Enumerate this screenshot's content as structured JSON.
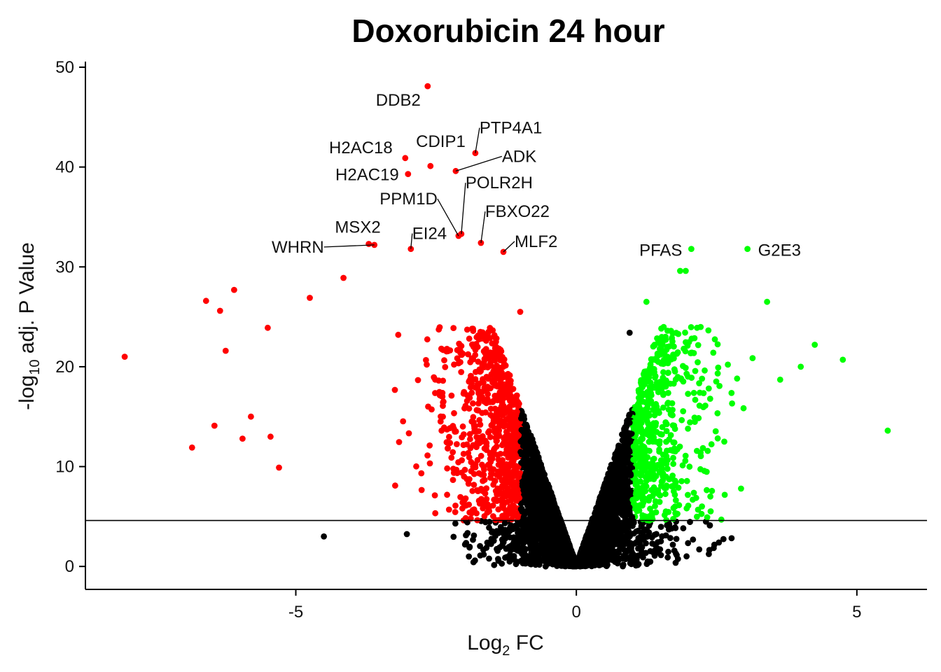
{
  "chart_data": {
    "type": "scatter",
    "title": "Doxorubicin 24 hour",
    "xlabel": {
      "main": "Log",
      "sub": "2",
      "suffix": " FC"
    },
    "ylabel": {
      "prefix": "-log",
      "sub": "10",
      "suffix": " adj. P Value"
    },
    "xlim": [
      -8.75,
      6.25
    ],
    "ylim": [
      -2.3,
      50.7
    ],
    "x_ticks": [
      {
        "value": -5,
        "label": "-5"
      },
      {
        "value": 0,
        "label": "0"
      },
      {
        "value": 5,
        "label": "5"
      }
    ],
    "y_ticks": [
      {
        "value": 0,
        "label": "0"
      },
      {
        "value": 10,
        "label": "10"
      },
      {
        "value": 20,
        "label": "20"
      },
      {
        "value": 30,
        "label": "30"
      },
      {
        "value": 40,
        "label": "40"
      },
      {
        "value": 50,
        "label": "50"
      }
    ],
    "significance_line_y": 4.6,
    "fc_threshold": 1.0,
    "grid": false,
    "colors": {
      "down": "#ff0000",
      "up": "#00ff00",
      "ns": "#000000"
    },
    "labeled_genes": [
      {
        "name": "DDB2",
        "x": -2.65,
        "y": 48.1
      },
      {
        "name": "PTP4A1",
        "x": -1.8,
        "y": 41.4
      },
      {
        "name": "CDIP1",
        "x": -2.6,
        "y": 40.1
      },
      {
        "name": "H2AC18",
        "x": -3.05,
        "y": 40.9
      },
      {
        "name": "ADK",
        "x": -2.15,
        "y": 39.6
      },
      {
        "name": "H2AC19",
        "x": -3.0,
        "y": 39.3
      },
      {
        "name": "POLR2H",
        "x": -2.05,
        "y": 33.3
      },
      {
        "name": "PPM1D",
        "x": -2.1,
        "y": 33.1
      },
      {
        "name": "FBXO22",
        "x": -1.7,
        "y": 32.4
      },
      {
        "name": "MSX2",
        "x": -3.7,
        "y": 32.3
      },
      {
        "name": "EI24",
        "x": -2.95,
        "y": 31.8
      },
      {
        "name": "WHRN",
        "x": -3.6,
        "y": 32.2
      },
      {
        "name": "MLF2",
        "x": -1.3,
        "y": 31.5
      },
      {
        "name": "PFAS",
        "x": 2.05,
        "y": 31.8
      },
      {
        "name": "G2E3",
        "x": 3.05,
        "y": 31.8
      }
    ],
    "highlight_points": [
      {
        "x": -8.05,
        "y": 21.0
      },
      {
        "x": -6.85,
        "y": 11.9
      },
      {
        "x": -6.6,
        "y": 26.6
      },
      {
        "x": -6.35,
        "y": 25.6
      },
      {
        "x": -6.1,
        "y": 27.7
      },
      {
        "x": -6.25,
        "y": 21.6
      },
      {
        "x": -6.45,
        "y": 14.1
      },
      {
        "x": -5.95,
        "y": 12.8
      },
      {
        "x": -5.8,
        "y": 15.0
      },
      {
        "x": -5.5,
        "y": 23.9
      },
      {
        "x": -5.3,
        "y": 9.9
      },
      {
        "x": -5.45,
        "y": 13.0
      },
      {
        "x": -4.75,
        "y": 26.9
      },
      {
        "x": -4.5,
        "y": 3.0
      },
      {
        "x": -4.15,
        "y": 28.9
      },
      {
        "x": 5.55,
        "y": 13.6
      },
      {
        "x": 4.75,
        "y": 20.7
      },
      {
        "x": 4.25,
        "y": 22.2
      },
      {
        "x": 4.0,
        "y": 20.0
      },
      {
        "x": 3.4,
        "y": 26.5
      },
      {
        "x": 1.95,
        "y": 29.6
      },
      {
        "x": 1.85,
        "y": 29.6
      },
      {
        "x": 1.25,
        "y": 26.5
      },
      {
        "x": -1.0,
        "y": 25.5
      },
      {
        "x": 0.95,
        "y": 23.4
      }
    ]
  }
}
